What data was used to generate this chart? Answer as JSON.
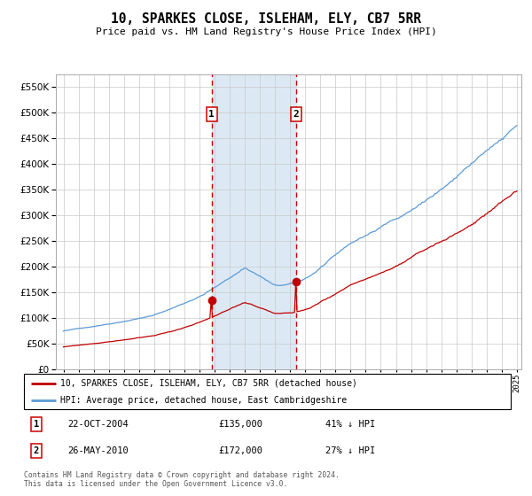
{
  "title": "10, SPARKES CLOSE, ISLEHAM, ELY, CB7 5RR",
  "subtitle": "Price paid vs. HM Land Registry's House Price Index (HPI)",
  "hpi_label": "HPI: Average price, detached house, East Cambridgeshire",
  "property_label": "10, SPARKES CLOSE, ISLEHAM, ELY, CB7 5RR (detached house)",
  "sale1_date": "22-OCT-2004",
  "sale1_price": 135000,
  "sale1_pct": "41% ↓ HPI",
  "sale1_year": 2004.81,
  "sale2_date": "26-MAY-2010",
  "sale2_price": 172000,
  "sale2_pct": "27% ↓ HPI",
  "sale2_year": 2010.39,
  "hpi_color": "#5b9bd5",
  "property_color": "#c00000",
  "highlight_color": "#dce9f5",
  "dashed_color": "#cc0000",
  "marker_color": "#c00000",
  "ylim": [
    0,
    575000
  ],
  "yticks": [
    0,
    50000,
    100000,
    150000,
    200000,
    250000,
    300000,
    350000,
    400000,
    450000,
    500000,
    550000
  ],
  "start_year": 1995,
  "end_year": 2025,
  "footer": "Contains HM Land Registry data © Crown copyright and database right 2024.\nThis data is licensed under the Open Government Licence v3.0."
}
